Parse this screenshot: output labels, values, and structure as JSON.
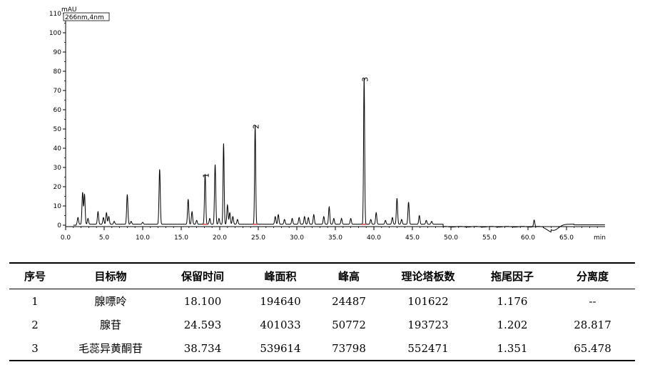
{
  "chart_data": {
    "type": "line",
    "ylabel": "mAU",
    "trace_label": "266nm,4nm",
    "xunit": "min",
    "xlim": [
      0.0,
      70.0
    ],
    "ylim": [
      0,
      110
    ],
    "xticks": [
      "0.0",
      "5.0",
      "10.0",
      "15.0",
      "20.0",
      "25.0",
      "30.0",
      "35.0",
      "40.0",
      "45.0",
      "50.0",
      "55.0",
      "60.0",
      "65.0"
    ],
    "xtick_values": [
      0,
      5,
      10,
      15,
      20,
      25,
      30,
      35,
      40,
      45,
      50,
      55,
      60,
      65
    ],
    "yticks": [
      "0",
      "10",
      "20",
      "30",
      "40",
      "50",
      "60",
      "70",
      "80",
      "90",
      "100",
      "110"
    ],
    "ytick_values": [
      0,
      10,
      20,
      30,
      40,
      50,
      60,
      70,
      80,
      90,
      100,
      110
    ],
    "baseline": 0.5,
    "peaks": [
      {
        "t": 1.6,
        "h": 3.5
      },
      {
        "t": 2.2,
        "h": 16.5
      },
      {
        "t": 2.45,
        "h": 15.5
      },
      {
        "t": 2.9,
        "h": 3
      },
      {
        "t": 4.2,
        "h": 6.5
      },
      {
        "t": 4.9,
        "h": 3.5
      },
      {
        "t": 5.3,
        "h": 6
      },
      {
        "t": 5.6,
        "h": 4
      },
      {
        "t": 6.3,
        "h": 1.5
      },
      {
        "t": 8.0,
        "h": 15.5
      },
      {
        "t": 8.5,
        "h": 1.5
      },
      {
        "t": 10.0,
        "h": 1
      },
      {
        "t": 12.2,
        "h": 28.5
      },
      {
        "t": 15.9,
        "h": 13
      },
      {
        "t": 16.4,
        "h": 6.5
      },
      {
        "t": 17.0,
        "h": 2
      },
      {
        "t": 18.1,
        "h": 26
      },
      {
        "t": 18.7,
        "h": 3
      },
      {
        "t": 19.4,
        "h": 31
      },
      {
        "t": 19.9,
        "h": 3
      },
      {
        "t": 20.5,
        "h": 42
      },
      {
        "t": 21.0,
        "h": 10
      },
      {
        "t": 21.3,
        "h": 6
      },
      {
        "t": 21.7,
        "h": 4
      },
      {
        "t": 22.3,
        "h": 2.5
      },
      {
        "t": 24.593,
        "h": 51.5
      },
      {
        "t": 27.2,
        "h": 4
      },
      {
        "t": 27.6,
        "h": 5
      },
      {
        "t": 28.4,
        "h": 2.5
      },
      {
        "t": 29.4,
        "h": 3
      },
      {
        "t": 30.3,
        "h": 3.5
      },
      {
        "t": 31.0,
        "h": 4
      },
      {
        "t": 31.5,
        "h": 3.5
      },
      {
        "t": 32.2,
        "h": 5
      },
      {
        "t": 33.5,
        "h": 4
      },
      {
        "t": 34.2,
        "h": 9
      },
      {
        "t": 34.8,
        "h": 3
      },
      {
        "t": 35.8,
        "h": 3
      },
      {
        "t": 37.0,
        "h": 3
      },
      {
        "t": 38.734,
        "h": 76
      },
      {
        "t": 39.6,
        "h": 2.5
      },
      {
        "t": 40.3,
        "h": 6
      },
      {
        "t": 41.5,
        "h": 2
      },
      {
        "t": 42.4,
        "h": 3.5
      },
      {
        "t": 43.0,
        "h": 13.5
      },
      {
        "t": 43.6,
        "h": 2.5
      },
      {
        "t": 44.5,
        "h": 11.5
      },
      {
        "t": 45.9,
        "h": 4.5
      },
      {
        "t": 46.8,
        "h": 2
      },
      {
        "t": 47.5,
        "h": 1.5
      },
      {
        "t": 60.8,
        "h": 3.5
      }
    ],
    "annotations": [
      {
        "label": "1",
        "t": 18.1,
        "h": 26
      },
      {
        "label": "2",
        "t": 24.593,
        "h": 51.5
      },
      {
        "label": "3",
        "t": 38.734,
        "h": 76
      }
    ]
  },
  "table": {
    "headers": [
      "序号",
      "目标物",
      "保留时间",
      "峰面积",
      "峰高",
      "理论塔板数",
      "拖尾因子",
      "分离度"
    ],
    "rows": [
      [
        "1",
        "腺嘌呤",
        "18.100",
        "194640",
        "24487",
        "101622",
        "1.176",
        "--"
      ],
      [
        "2",
        "腺苷",
        "24.593",
        "401033",
        "50772",
        "193723",
        "1.202",
        "28.817"
      ],
      [
        "3",
        "毛蕊异黄酮苷",
        "38.734",
        "539614",
        "73798",
        "552471",
        "1.351",
        "65.478"
      ]
    ]
  }
}
